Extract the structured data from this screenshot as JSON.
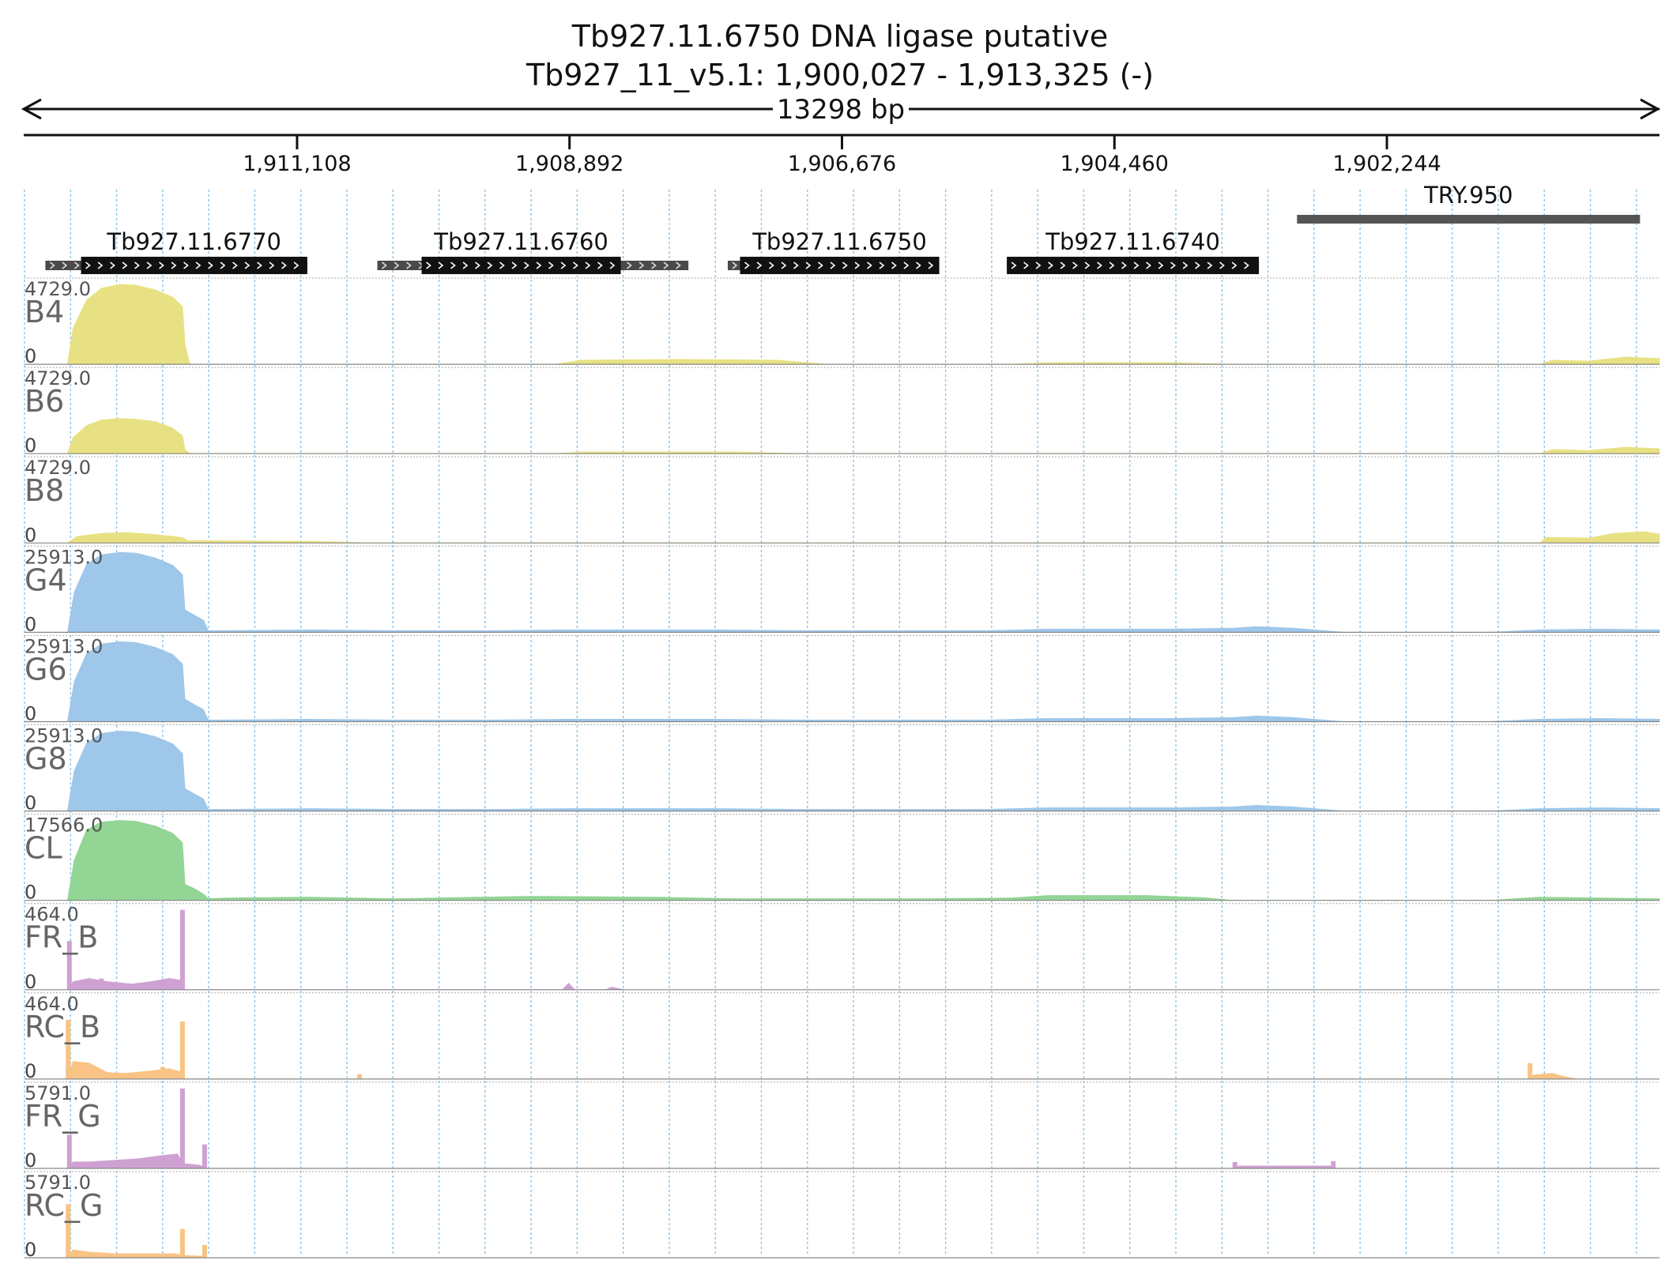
{
  "header": {
    "title": "Tb927.11.6750  DNA ligase  putative",
    "locus": "Tb927_11_v5.1: 1,900,027 - 1,913,325 (-)",
    "span_label": "13298 bp"
  },
  "region": {
    "start": 1900027,
    "end": 1913325,
    "strand": "-"
  },
  "ruler_ticks": [
    {
      "label": "1,911,108",
      "pos": 1911108
    },
    {
      "label": "1,908,892",
      "pos": 1908892
    },
    {
      "label": "1,906,676",
      "pos": 1906676
    },
    {
      "label": "1,904,460",
      "pos": 1904460
    },
    {
      "label": "1,902,244",
      "pos": 1902244
    }
  ],
  "genes": [
    {
      "name": "Tb927.11.6770",
      "utr": [
        1913155,
        1911025
      ],
      "cds": [
        1912865,
        1911025
      ]
    },
    {
      "name": "Tb927.11.6760",
      "utr": [
        1910455,
        1907925
      ],
      "cds": [
        1910095,
        1908475
      ]
    },
    {
      "name": "Tb927.11.6750",
      "utr": [
        1907605,
        1905885
      ],
      "cds": [
        1907505,
        1905885
      ]
    },
    {
      "name": "Tb927.11.6740",
      "utr": [
        1905335,
        1903285
      ],
      "cds": [
        1905335,
        1903285
      ]
    }
  ],
  "features": [
    {
      "name": "TRY.950",
      "range": [
        1902975,
        1900185
      ]
    }
  ],
  "colors": {
    "yellow": "#e8e183",
    "blue": "#9ec7ea",
    "green": "#92d595",
    "purple": "#cfa1d2",
    "orange": "#f9c385",
    "gene_box": "#111111",
    "utr_box": "#4a4a4a",
    "feature_bar": "#555555",
    "grid": "#8cc3e8"
  },
  "tracks": [
    {
      "name": "B4",
      "max_label": "4729.0",
      "zero_label": "0",
      "color": "yellow",
      "profile": [
        [
          1912975,
          0
        ],
        [
          1912930,
          0.45
        ],
        [
          1912820,
          0.8
        ],
        [
          1912700,
          0.95
        ],
        [
          1912550,
          1.0
        ],
        [
          1912420,
          0.99
        ],
        [
          1912260,
          0.93
        ],
        [
          1912120,
          0.84
        ],
        [
          1912040,
          0.72
        ],
        [
          1912020,
          0.25
        ],
        [
          1911980,
          0
        ],
        [
          1909000,
          0
        ],
        [
          1908800,
          0.05
        ],
        [
          1908000,
          0.06
        ],
        [
          1907200,
          0.05
        ],
        [
          1906800,
          0
        ],
        [
          1905300,
          0
        ],
        [
          1905000,
          0.02
        ],
        [
          1904000,
          0.02
        ],
        [
          1903500,
          0
        ],
        [
          1901000,
          0
        ],
        [
          1900900,
          0.05
        ],
        [
          1900600,
          0.04
        ],
        [
          1900300,
          0.09
        ],
        [
          1900027,
          0.07
        ]
      ]
    },
    {
      "name": "B6",
      "max_label": "4729.0",
      "zero_label": "0",
      "color": "yellow",
      "profile": [
        [
          1912975,
          0
        ],
        [
          1912930,
          0.2
        ],
        [
          1912820,
          0.35
        ],
        [
          1912700,
          0.42
        ],
        [
          1912550,
          0.44
        ],
        [
          1912420,
          0.43
        ],
        [
          1912260,
          0.4
        ],
        [
          1912120,
          0.32
        ],
        [
          1912040,
          0.22
        ],
        [
          1912020,
          0.05
        ],
        [
          1911980,
          0
        ],
        [
          1909000,
          0
        ],
        [
          1908800,
          0.02
        ],
        [
          1907500,
          0.02
        ],
        [
          1907000,
          0
        ],
        [
          1901000,
          0
        ],
        [
          1900900,
          0.05
        ],
        [
          1900600,
          0.04
        ],
        [
          1900300,
          0.08
        ],
        [
          1900027,
          0.06
        ]
      ]
    },
    {
      "name": "B8",
      "max_label": "4729.0",
      "zero_label": "0",
      "color": "yellow",
      "profile": [
        [
          1912975,
          0
        ],
        [
          1912900,
          0.08
        ],
        [
          1912700,
          0.12
        ],
        [
          1912500,
          0.13
        ],
        [
          1912300,
          0.11
        ],
        [
          1912100,
          0.08
        ],
        [
          1912030,
          0.06
        ],
        [
          1912000,
          0.03
        ],
        [
          1911000,
          0.02
        ],
        [
          1910500,
          0
        ],
        [
          1901000,
          0
        ],
        [
          1900950,
          0.07
        ],
        [
          1900600,
          0.06
        ],
        [
          1900400,
          0.12
        ],
        [
          1900150,
          0.14
        ],
        [
          1900027,
          0.11
        ]
      ]
    },
    {
      "name": "G4",
      "max_label": "25913.0",
      "zero_label": "0",
      "color": "blue",
      "profile": [
        [
          1912975,
          0
        ],
        [
          1912920,
          0.5
        ],
        [
          1912820,
          0.85
        ],
        [
          1912700,
          0.97
        ],
        [
          1912550,
          1.0
        ],
        [
          1912420,
          0.99
        ],
        [
          1912260,
          0.93
        ],
        [
          1912120,
          0.84
        ],
        [
          1912040,
          0.72
        ],
        [
          1912020,
          0.28
        ],
        [
          1911950,
          0.22
        ],
        [
          1911870,
          0.15
        ],
        [
          1911830,
          0.02
        ],
        [
          1911700,
          0.02
        ],
        [
          1911000,
          0.03
        ],
        [
          1910300,
          0.02
        ],
        [
          1909500,
          0.02
        ],
        [
          1908900,
          0.03
        ],
        [
          1907700,
          0.03
        ],
        [
          1907000,
          0.02
        ],
        [
          1905500,
          0.02
        ],
        [
          1905000,
          0.04
        ],
        [
          1904000,
          0.04
        ],
        [
          1903500,
          0.05
        ],
        [
          1903300,
          0.07
        ],
        [
          1903000,
          0.05
        ],
        [
          1902600,
          0
        ],
        [
          1901400,
          0
        ],
        [
          1901000,
          0.03
        ],
        [
          1900500,
          0.04
        ],
        [
          1900027,
          0.03
        ]
      ]
    },
    {
      "name": "G6",
      "max_label": "25913.0",
      "zero_label": "0",
      "color": "blue",
      "profile": [
        [
          1912975,
          0
        ],
        [
          1912920,
          0.5
        ],
        [
          1912820,
          0.85
        ],
        [
          1912700,
          0.97
        ],
        [
          1912550,
          1.0
        ],
        [
          1912420,
          0.99
        ],
        [
          1912260,
          0.93
        ],
        [
          1912120,
          0.84
        ],
        [
          1912040,
          0.72
        ],
        [
          1912020,
          0.28
        ],
        [
          1911950,
          0.22
        ],
        [
          1911870,
          0.15
        ],
        [
          1911830,
          0.02
        ],
        [
          1911700,
          0.02
        ],
        [
          1911000,
          0.03
        ],
        [
          1910300,
          0.02
        ],
        [
          1909500,
          0.02
        ],
        [
          1908900,
          0.03
        ],
        [
          1907700,
          0.03
        ],
        [
          1907000,
          0.02
        ],
        [
          1905500,
          0.02
        ],
        [
          1905000,
          0.04
        ],
        [
          1904000,
          0.04
        ],
        [
          1903500,
          0.05
        ],
        [
          1903300,
          0.07
        ],
        [
          1903000,
          0.05
        ],
        [
          1902600,
          0
        ],
        [
          1901400,
          0
        ],
        [
          1901000,
          0.03
        ],
        [
          1900500,
          0.04
        ],
        [
          1900027,
          0.03
        ]
      ]
    },
    {
      "name": "G8",
      "max_label": "25913.0",
      "zero_label": "0",
      "color": "blue",
      "profile": [
        [
          1912975,
          0
        ],
        [
          1912920,
          0.5
        ],
        [
          1912820,
          0.85
        ],
        [
          1912700,
          0.97
        ],
        [
          1912550,
          1.0
        ],
        [
          1912420,
          0.99
        ],
        [
          1912260,
          0.93
        ],
        [
          1912120,
          0.84
        ],
        [
          1912040,
          0.72
        ],
        [
          1912020,
          0.28
        ],
        [
          1911950,
          0.22
        ],
        [
          1911870,
          0.15
        ],
        [
          1911830,
          0.02
        ],
        [
          1911700,
          0.02
        ],
        [
          1911000,
          0.03
        ],
        [
          1910300,
          0.02
        ],
        [
          1909500,
          0.02
        ],
        [
          1908900,
          0.03
        ],
        [
          1907700,
          0.03
        ],
        [
          1907000,
          0.02
        ],
        [
          1905500,
          0.02
        ],
        [
          1905000,
          0.04
        ],
        [
          1904000,
          0.04
        ],
        [
          1903500,
          0.05
        ],
        [
          1903300,
          0.07
        ],
        [
          1903000,
          0.05
        ],
        [
          1902600,
          0
        ],
        [
          1901400,
          0
        ],
        [
          1901000,
          0.03
        ],
        [
          1900500,
          0.04
        ],
        [
          1900027,
          0.03
        ]
      ]
    },
    {
      "name": "CL",
      "max_label": "17566.0",
      "zero_label": "0",
      "color": "green",
      "profile": [
        [
          1912975,
          0
        ],
        [
          1912920,
          0.5
        ],
        [
          1912820,
          0.88
        ],
        [
          1912700,
          0.98
        ],
        [
          1912550,
          1.0
        ],
        [
          1912420,
          0.99
        ],
        [
          1912260,
          0.93
        ],
        [
          1912120,
          0.84
        ],
        [
          1912040,
          0.72
        ],
        [
          1912020,
          0.2
        ],
        [
          1911950,
          0.15
        ],
        [
          1911870,
          0.08
        ],
        [
          1911830,
          0.02
        ],
        [
          1911700,
          0.03
        ],
        [
          1911000,
          0.04
        ],
        [
          1910300,
          0.02
        ],
        [
          1910000,
          0.03
        ],
        [
          1909200,
          0.05
        ],
        [
          1908200,
          0.04
        ],
        [
          1907500,
          0.02
        ],
        [
          1906000,
          0.02
        ],
        [
          1905300,
          0.03
        ],
        [
          1905000,
          0.06
        ],
        [
          1904200,
          0.06
        ],
        [
          1903700,
          0.03
        ],
        [
          1903500,
          0
        ],
        [
          1901400,
          0
        ],
        [
          1901000,
          0.04
        ],
        [
          1900500,
          0.03
        ],
        [
          1900027,
          0.02
        ]
      ]
    },
    {
      "name": "FR_B",
      "max_label": "464.0",
      "zero_label": "0",
      "color": "purple",
      "spikes": [
        [
          1912960,
          0.61
        ],
        [
          1912700,
          0.14
        ],
        [
          1912200,
          0.12
        ],
        [
          1912040,
          1.0
        ]
      ],
      "profile": [
        [
          1912975,
          0
        ],
        [
          1912930,
          0.1
        ],
        [
          1912800,
          0.14
        ],
        [
          1912650,
          0.1
        ],
        [
          1912450,
          0.07
        ],
        [
          1912300,
          0.1
        ],
        [
          1912150,
          0.14
        ],
        [
          1912060,
          0.12
        ],
        [
          1912030,
          0
        ],
        [
          1908950,
          0
        ],
        [
          1908900,
          0.08
        ],
        [
          1908850,
          0
        ],
        [
          1908600,
          0
        ],
        [
          1908550,
          0.03
        ],
        [
          1908450,
          0
        ]
      ]
    },
    {
      "name": "RC_B",
      "max_label": "464.0",
      "zero_label": "0",
      "color": "orange",
      "spikes": [
        [
          1912970,
          0.74
        ],
        [
          1912200,
          0.15
        ],
        [
          1912040,
          0.72
        ],
        [
          1910600,
          0.06
        ],
        [
          1901080,
          0.2
        ]
      ],
      "profile": [
        [
          1912975,
          0
        ],
        [
          1912930,
          0.22
        ],
        [
          1912800,
          0.2
        ],
        [
          1912650,
          0.08
        ],
        [
          1912500,
          0.07
        ],
        [
          1912300,
          0.1
        ],
        [
          1912150,
          0.13
        ],
        [
          1912060,
          0.09
        ],
        [
          1912030,
          0
        ],
        [
          1901100,
          0
        ],
        [
          1901050,
          0.05
        ],
        [
          1900900,
          0.07
        ],
        [
          1900800,
          0.03
        ],
        [
          1900700,
          0
        ]
      ]
    },
    {
      "name": "FR_G",
      "max_label": "5791.0",
      "zero_label": "0",
      "color": "purple",
      "spikes": [
        [
          1912960,
          0.42
        ],
        [
          1912040,
          1.0
        ],
        [
          1911860,
          0.3
        ],
        [
          1903480,
          0.08
        ],
        [
          1902680,
          0.09
        ]
      ],
      "profile": [
        [
          1912975,
          0
        ],
        [
          1912930,
          0.08
        ],
        [
          1912800,
          0.08
        ],
        [
          1912600,
          0.1
        ],
        [
          1912400,
          0.12
        ],
        [
          1912200,
          0.16
        ],
        [
          1912080,
          0.18
        ],
        [
          1912040,
          0.06
        ],
        [
          1911900,
          0.04
        ],
        [
          1911840,
          0
        ],
        [
          1903500,
          0
        ],
        [
          1903450,
          0.03
        ],
        [
          1902700,
          0.03
        ],
        [
          1902650,
          0
        ]
      ]
    },
    {
      "name": "RC_G",
      "max_label": "5791.0",
      "zero_label": "0",
      "color": "orange",
      "spikes": [
        [
          1912970,
          0.67
        ],
        [
          1912040,
          0.36
        ],
        [
          1911860,
          0.16
        ]
      ],
      "profile": [
        [
          1912975,
          0
        ],
        [
          1912930,
          0.1
        ],
        [
          1912800,
          0.07
        ],
        [
          1912600,
          0.05
        ],
        [
          1912300,
          0.05
        ],
        [
          1912100,
          0.05
        ],
        [
          1912040,
          0.03
        ],
        [
          1911880,
          0.02
        ],
        [
          1911840,
          0
        ]
      ]
    }
  ]
}
